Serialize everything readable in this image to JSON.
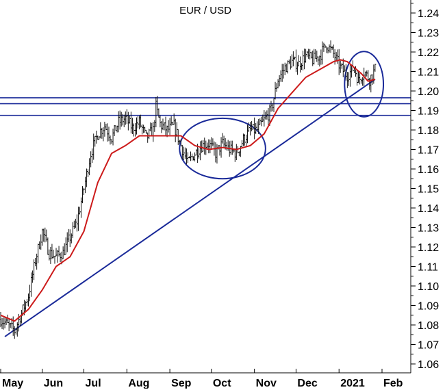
{
  "chart_data": {
    "type": "candlestick",
    "title": "EUR / USD",
    "xlabel": "",
    "ylabel": "",
    "ylim": [
      1.055,
      1.245
    ],
    "y_ticks": [
      "1.06",
      "1.07",
      "1.08",
      "1.09",
      "1.10",
      "1.11",
      "1.12",
      "1.13",
      "1.14",
      "1.15",
      "1.16",
      "1.17",
      "1.18",
      "1.19",
      "1.20",
      "1.21",
      "1.22",
      "1.23",
      "1.24"
    ],
    "y_tick_values": [
      1.06,
      1.07,
      1.08,
      1.09,
      1.1,
      1.11,
      1.12,
      1.13,
      1.14,
      1.15,
      1.16,
      1.17,
      1.18,
      1.19,
      1.2,
      1.21,
      1.22,
      1.23,
      1.24
    ],
    "x_range_days": [
      0,
      275
    ],
    "x_ticks": [
      {
        "label": "May",
        "day": 0
      },
      {
        "label": "Jun",
        "day": 30
      },
      {
        "label": "Jul",
        "day": 60
      },
      {
        "label": "Aug",
        "day": 91
      },
      {
        "label": "Sep",
        "day": 122
      },
      {
        "label": "Oct",
        "day": 152
      },
      {
        "label": "Nov",
        "day": 183
      },
      {
        "label": "Dec",
        "day": 213
      },
      {
        "label": "2021",
        "day": 244
      },
      {
        "label": "Feb",
        "day": 275
      }
    ],
    "grid": false,
    "legend": "none",
    "colors": {
      "price": "#111111",
      "moving_average": "#cc1a1a",
      "annotation": "#1a2a99",
      "axis": "#000000"
    },
    "series": [
      {
        "kind": "price",
        "x_days": [
          0,
          10,
          20,
          25,
          30,
          35,
          40,
          45,
          50,
          55,
          60,
          65,
          70,
          75,
          80,
          85,
          90,
          95,
          100,
          105,
          110,
          112,
          115,
          120,
          125,
          130,
          135,
          140,
          145,
          150,
          155,
          160,
          165,
          170,
          175,
          180,
          185,
          190,
          195,
          200,
          205,
          210,
          215,
          220,
          225,
          230,
          235,
          240,
          245,
          250,
          255,
          258,
          262,
          266,
          270
        ],
        "values": [
          1.083,
          1.077,
          1.095,
          1.113,
          1.128,
          1.117,
          1.115,
          1.117,
          1.125,
          1.133,
          1.15,
          1.168,
          1.178,
          1.182,
          1.176,
          1.184,
          1.186,
          1.181,
          1.184,
          1.176,
          1.18,
          1.192,
          1.183,
          1.18,
          1.182,
          1.172,
          1.163,
          1.168,
          1.172,
          1.173,
          1.168,
          1.173,
          1.17,
          1.168,
          1.175,
          1.18,
          1.18,
          1.185,
          1.19,
          1.206,
          1.212,
          1.215,
          1.214,
          1.218,
          1.216,
          1.218,
          1.224,
          1.219,
          1.212,
          1.208,
          1.212,
          1.205,
          1.21,
          1.206,
          1.211
        ]
      },
      {
        "kind": "moving_average",
        "x_days": [
          0,
          10,
          20,
          30,
          40,
          50,
          60,
          70,
          80,
          90,
          100,
          110,
          120,
          130,
          140,
          150,
          160,
          170,
          180,
          190,
          200,
          210,
          220,
          230,
          240,
          245,
          250,
          255,
          260,
          265,
          270
        ],
        "values": [
          1.085,
          1.082,
          1.088,
          1.098,
          1.11,
          1.115,
          1.128,
          1.153,
          1.168,
          1.172,
          1.177,
          1.177,
          1.177,
          1.177,
          1.172,
          1.17,
          1.171,
          1.17,
          1.172,
          1.178,
          1.191,
          1.199,
          1.207,
          1.211,
          1.215,
          1.216,
          1.215,
          1.212,
          1.209,
          1.205,
          1.206
        ]
      }
    ],
    "annotations": {
      "trendline": {
        "start": {
          "day": 3,
          "value": 1.074
        },
        "end": {
          "day": 270,
          "value": 1.206
        }
      },
      "horizontal_levels": [
        1.1965,
        1.1935,
        1.1875
      ],
      "ellipses": [
        {
          "center_day": 160,
          "center_value": 1.1705,
          "span_days": 62,
          "span_value": 0.031
        },
        {
          "center_day": 262,
          "center_value": 1.2035,
          "span_days": 28,
          "span_value": 0.0335
        }
      ]
    }
  }
}
